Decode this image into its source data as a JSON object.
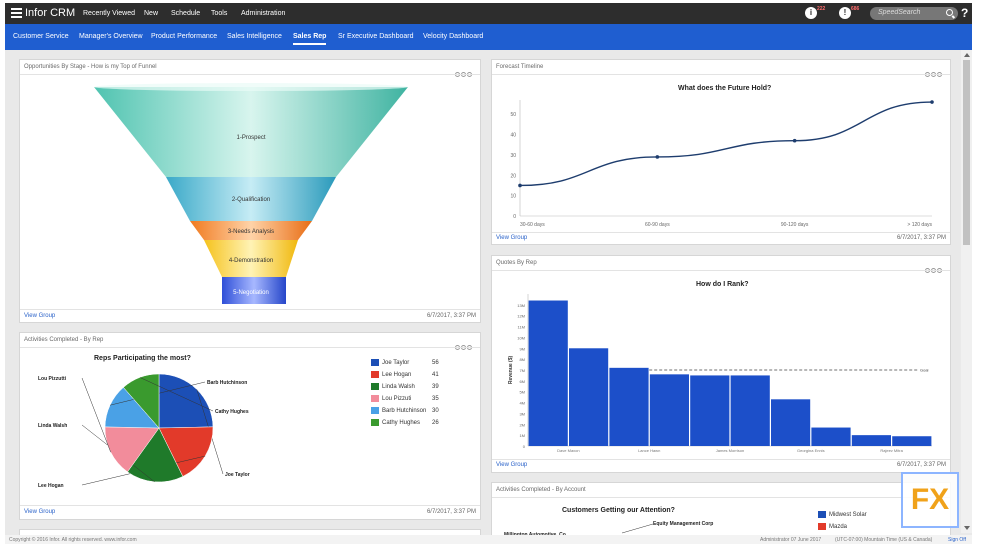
{
  "header": {
    "brand": "Infor CRM",
    "menu": [
      "Recently Viewed",
      "New",
      "Schedule",
      "Tools",
      "Administration"
    ],
    "notif_count_1": "222",
    "notif_count_2": "686",
    "search_placeholder": "SpeedSearch",
    "help": "?"
  },
  "tabs": [
    {
      "label": "Customer Service"
    },
    {
      "label": "Manager's Overview"
    },
    {
      "label": "Product Performance"
    },
    {
      "label": "Sales Intelligence"
    },
    {
      "label": "Sales Rep",
      "active": true
    },
    {
      "label": "Sr Executive Dashboard"
    },
    {
      "label": "Velocity Dashboard"
    }
  ],
  "widgets": {
    "funnel": {
      "title": "Opportunities By Stage - How is my Top of Funnel",
      "link": "View Group",
      "date": "6/7/2017, 3:37 PM",
      "stages": [
        "1-Prospect",
        "2-Qualification",
        "3-Needs Analysis",
        "4-Demonstration",
        "5-Negotiation"
      ]
    },
    "forecast": {
      "title": "Forecast Timeline",
      "chart_title": "What does the Future Hold?",
      "link": "View Group",
      "date": "6/7/2017, 3:37 PM"
    },
    "activities": {
      "title": "Activities Completed - By Rep",
      "chart_title": "Reps Participating the most?",
      "link": "View Group",
      "date": "6/7/2017, 3:37 PM"
    },
    "quotes": {
      "title": "Quotes By Rep",
      "chart_title": "How do I Rank?",
      "link": "View Group",
      "date": "6/7/2017, 3:37 PM",
      "ylabel": "Revenue ($)",
      "goal_label": "Goal"
    },
    "account": {
      "title": "Activities Completed - By Account",
      "chart_title": "Customers Getting our Attention?",
      "labels": [
        "Equity Management Corp",
        "Millington Automotive, Co."
      ],
      "legend": [
        "Midwest Solar",
        "Mazda"
      ]
    }
  },
  "chart_data": [
    {
      "type": "line",
      "title": "What does the Future Hold?",
      "x": [
        "30-60 days",
        "60-90 days",
        "90-120 days",
        "> 120 days"
      ],
      "y_ticks": [
        0,
        10,
        20,
        30,
        40,
        50
      ],
      "series": [
        {
          "values": [
            15,
            29,
            37,
            56
          ]
        }
      ],
      "ylim": [
        0,
        57
      ]
    },
    {
      "type": "pie",
      "title": "Reps Participating the most?",
      "categories": [
        "Joe Taylor",
        "Lee Hogan",
        "Linda Walsh",
        "Lou Pizzutti",
        "Barb Hutchinson",
        "Cathy Hughes"
      ],
      "values": [
        56,
        41,
        39,
        35,
        30,
        26
      ],
      "colors": [
        "#1c4fb6",
        "#e23a2a",
        "#1f7a2a",
        "#f28c9b",
        "#4aa1e6",
        "#3a9a2e"
      ],
      "legend_labels": [
        "Joe Taylor",
        "Lee Hogan",
        "Linda Walsh",
        "Lou Pizzuti",
        "Barb Hutchinson",
        "Cathy Hughes"
      ],
      "slice_labels": [
        "Joe Taylor",
        "Lee Hogan",
        "Linda Walsh",
        "Lou Pizzutti",
        "Barb Hutchinson",
        "Cathy Hughes"
      ],
      "legend": "right"
    },
    {
      "type": "bar",
      "title": "How do I Rank?",
      "ylabel": "Revenue ($)",
      "x_labels": [
        "Dave Maxon",
        "Lance Hawn",
        "James Morrison",
        "Georgina Ennis",
        "Rajeev Mitra"
      ],
      "y_ticks": [
        "0",
        "1M",
        "2M",
        "3M",
        "4M",
        "5M",
        "6M",
        "7M",
        "8M",
        "9M",
        "10M",
        "11M",
        "12M",
        "13M"
      ],
      "values": [
        13.4,
        9.0,
        7.2,
        6.6,
        6.5,
        6.5,
        4.3,
        1.7,
        1.0,
        0.9
      ],
      "goal": 7.0,
      "ylim": [
        0,
        14
      ],
      "color": "#1c4fc9"
    }
  ],
  "footer": {
    "copyright": "Copyright © 2016 Infor. All rights reserved. www.infor.com",
    "user": "Administrator 07 June 2017",
    "timezone": "(UTC-07:00) Mountain Time (US & Canada)",
    "signoff": "Sign Off"
  },
  "logo_text": "FX"
}
